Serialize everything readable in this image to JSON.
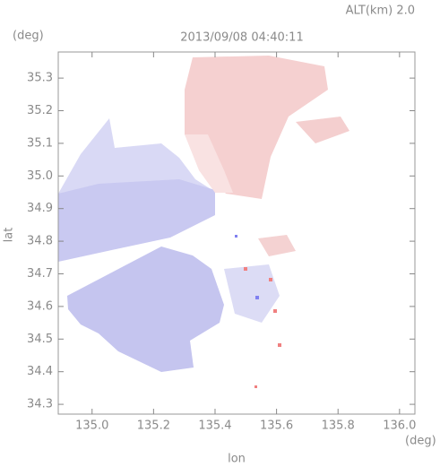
{
  "chart_data": {
    "type": "map",
    "annotation": "ALT(km) 2.0",
    "title": "2013/09/08 04:40:11",
    "y_unit": "(deg)",
    "x_unit": "(deg)",
    "xlabel": "lon",
    "ylabel": "lat",
    "xlim": [
      134.89,
      136.05
    ],
    "xticks": [
      {
        "value": 135,
        "label": "135.0"
      },
      135.2,
      135.4,
      135.6,
      135.8,
      {
        "value": 136,
        "label": "136.0"
      }
    ],
    "ylim": [
      34.27,
      35.38
    ],
    "yticks": [
      34.3,
      34.4,
      34.5,
      34.6,
      34.7,
      34.8,
      34.9,
      {
        "value": 35,
        "label": "35.0"
      },
      35.1,
      35.2,
      35.3
    ]
  }
}
